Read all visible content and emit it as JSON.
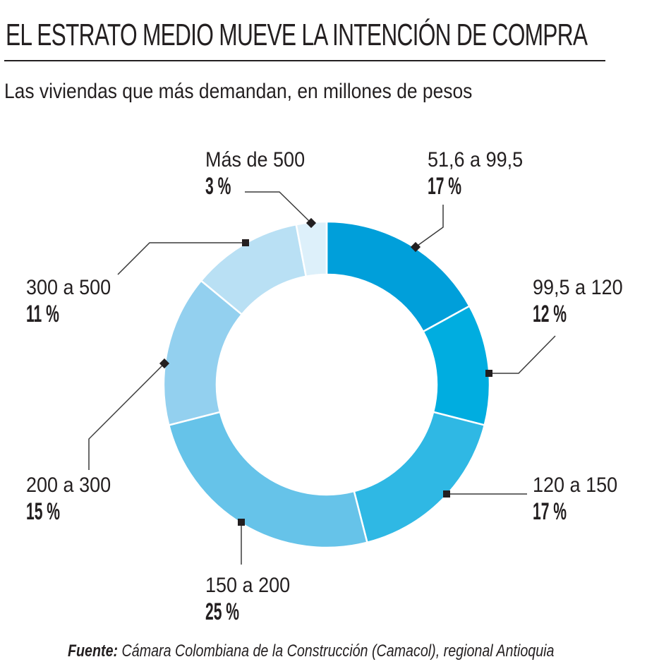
{
  "header": {
    "title": "EL ESTRATO MEDIO MUEVE LA INTENCIÓN DE COMPRA",
    "subtitle": "Las viviendas que más demandan, en millones de pesos"
  },
  "chart_data": {
    "type": "pie",
    "variant": "donut",
    "title": "EL ESTRATO MEDIO MUEVE LA INTENCIÓN DE COMPRA",
    "subtitle": "Las viviendas que más demandan, en millones de pesos",
    "start": "12 o'clock, clockwise",
    "categories": [
      "51,6 a 99,5",
      "99,5 a 120",
      "120 a 150",
      "150 a 200",
      "200 a 300",
      "300 a 500",
      "Más de 500"
    ],
    "values": [
      17,
      12,
      17,
      25,
      15,
      11,
      3
    ],
    "value_labels": [
      "17 %",
      "12 %",
      "17 %",
      "25 %",
      "15 %",
      "11 %",
      "3 %"
    ],
    "unit": "%",
    "colors": [
      "#009fda",
      "#00ade0",
      "#2fb8e4",
      "#66c3e9",
      "#93d0ef",
      "#b9e0f4",
      "#ddf0fa"
    ]
  },
  "source": {
    "label": "Fuente:",
    "text": " Cámara Colombiana de la Construcción (Camacol), regional Antioquia"
  }
}
